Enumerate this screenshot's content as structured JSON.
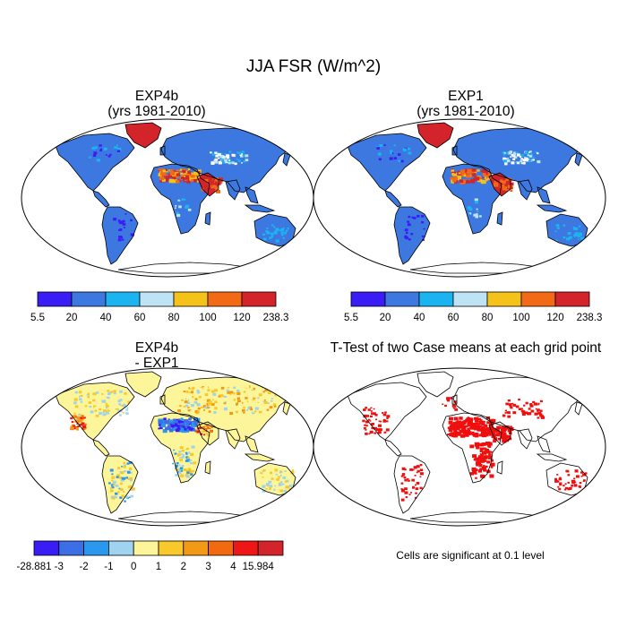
{
  "title": "JJA FSR (W/m^2)",
  "panels": [
    {
      "title": "EXP4b",
      "subtitle": "(yrs 1981-2010)"
    },
    {
      "title": "EXP1",
      "subtitle": "(yrs 1981-2010)"
    },
    {
      "title": "EXP4b",
      "subtitle": "- EXP1"
    },
    {
      "title": "T-Test of two Case means at each grid point",
      "subtitle": ""
    }
  ],
  "colorbars": [
    {
      "labels": [
        "5.5",
        "20",
        "40",
        "60",
        "80",
        "100",
        "120",
        "238.3"
      ],
      "colors": [
        "#3a1cf5",
        "#3c78e0",
        "#1cb4f0",
        "#bde3f5",
        "#f5c21a",
        "#f26a16",
        "#d2242a"
      ]
    },
    {
      "labels": [
        "5.5",
        "20",
        "40",
        "60",
        "80",
        "100",
        "120",
        "238.3"
      ],
      "colors": [
        "#3a1cf5",
        "#3c78e0",
        "#1cb4f0",
        "#bde3f5",
        "#f5c21a",
        "#f26a16",
        "#d2242a"
      ]
    },
    {
      "labels": [
        "-28.881",
        "-3",
        "-2",
        "-1",
        "0",
        "1",
        "2",
        "3",
        "4",
        "15.984"
      ],
      "colors": [
        "#3a1cf5",
        "#3c6ee6",
        "#2b98f0",
        "#9fd3f0",
        "#fdf59a",
        "#f9c82a",
        "#f29a15",
        "#f26a10",
        "#ef1616",
        "#d2242a"
      ]
    }
  ],
  "note": "Cells are significant at 0.1 level",
  "colors": {
    "ocean": "#ffffff",
    "land_default": "#3c78e0",
    "desert": "#d2242a",
    "greenland": "#d2242a",
    "diff_land": "#fdf59a",
    "significant": "#ef0f0f"
  }
}
